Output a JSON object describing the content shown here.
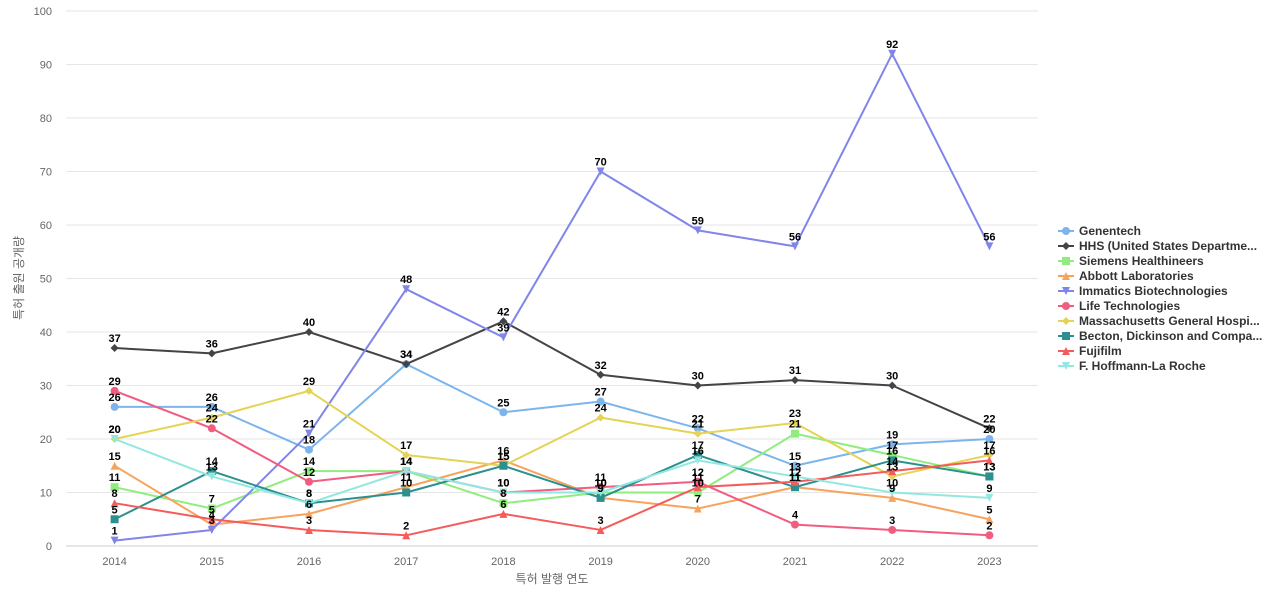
{
  "chart_data": {
    "type": "line",
    "title": "",
    "xlabel": "특허 발행 연도",
    "ylabel": "특허 출원 공개량",
    "ylim": [
      0,
      100
    ],
    "yticks": [
      0,
      10,
      20,
      30,
      40,
      50,
      60,
      70,
      80,
      90,
      100
    ],
    "grid": true,
    "legend_position": "right",
    "categories": [
      "2014",
      "2015",
      "2016",
      "2017",
      "2018",
      "2019",
      "2020",
      "2021",
      "2022",
      "2023"
    ],
    "series": [
      {
        "name": "Genentech",
        "color": "#7cb5ec",
        "marker": "circle",
        "values": [
          26,
          26,
          18,
          34,
          25,
          27,
          22,
          15,
          19,
          20
        ]
      },
      {
        "name": "HHS (United States Departme...",
        "color": "#434348",
        "marker": "diamond",
        "values": [
          37,
          36,
          40,
          34,
          42,
          32,
          30,
          31,
          30,
          22
        ]
      },
      {
        "name": "Siemens Healthineers",
        "color": "#90ed7d",
        "marker": "square",
        "values": [
          11,
          7,
          14,
          14,
          8,
          10,
          10,
          21,
          17,
          13
        ]
      },
      {
        "name": "Abbott Laboratories",
        "color": "#f7a35c",
        "marker": "triangle",
        "values": [
          15,
          4,
          6,
          11,
          16,
          9,
          7,
          11,
          9,
          5
        ]
      },
      {
        "name": "Immatics Biotechnologies",
        "color": "#8085e9",
        "marker": "triangle-down",
        "values": [
          1,
          3,
          21,
          48,
          39,
          70,
          59,
          56,
          92,
          56
        ]
      },
      {
        "name": "Life Technologies",
        "color": "#f15c80",
        "marker": "circle",
        "values": [
          29,
          22,
          12,
          14,
          10,
          11,
          12,
          4,
          3,
          2
        ]
      },
      {
        "name": "Massachusetts General Hospi...",
        "color": "#e4d354",
        "marker": "diamond",
        "values": [
          20,
          24,
          29,
          17,
          15,
          24,
          21,
          23,
          13,
          17
        ]
      },
      {
        "name": "Becton, Dickinson and Compa...",
        "color": "#2b908f",
        "marker": "square",
        "values": [
          5,
          14,
          8,
          10,
          15,
          9,
          17,
          11,
          16,
          13
        ]
      },
      {
        "name": "Fujifilm",
        "color": "#f45b5b",
        "marker": "triangle",
        "values": [
          8,
          5,
          3,
          2,
          6,
          3,
          11,
          12,
          14,
          16
        ]
      },
      {
        "name": "F. Hoffmann-La Roche",
        "color": "#91e8e1",
        "marker": "triangle-down",
        "values": [
          20,
          13,
          8,
          14,
          10,
          10,
          16,
          13,
          10,
          9
        ]
      }
    ]
  }
}
